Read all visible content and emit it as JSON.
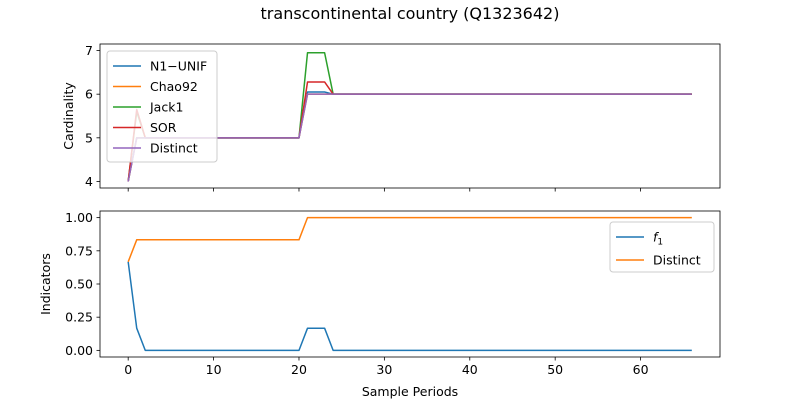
{
  "figure": {
    "title": "transcontinental country (Q1323642)"
  },
  "chart_data": [
    {
      "type": "line",
      "ylabel": "Cardinality",
      "xlabel": "",
      "xlim": [
        -3.3,
        69.3
      ],
      "ylim": [
        3.85,
        7.15
      ],
      "xticks": [
        0,
        10,
        20,
        30,
        40,
        50,
        60
      ],
      "yticks": [
        4,
        5,
        6,
        7
      ],
      "show_xticklabels": false,
      "grid": false,
      "legend_position": "upper-left",
      "series": [
        {
          "name": "N1−UNIF",
          "color": "#1f77b4",
          "points": [
            [
              0,
              4
            ],
            [
              1,
              5
            ],
            [
              2,
              5
            ],
            [
              20,
              5
            ],
            [
              21,
              6.05
            ],
            [
              23,
              6.05
            ],
            [
              24,
              6
            ],
            [
              66,
              6
            ]
          ]
        },
        {
          "name": "Chao92",
          "color": "#ff7f0e",
          "points": [
            [
              0,
              4
            ],
            [
              1,
              5
            ],
            [
              2,
              5
            ],
            [
              20,
              5
            ],
            [
              21,
              6
            ],
            [
              66,
              6
            ]
          ]
        },
        {
          "name": "Jack1",
          "color": "#2ca02c",
          "points": [
            [
              0,
              4
            ],
            [
              1,
              5.6
            ],
            [
              2,
              5
            ],
            [
              20,
              5
            ],
            [
              21,
              6.95
            ],
            [
              23,
              6.95
            ],
            [
              24,
              6
            ],
            [
              66,
              6
            ]
          ]
        },
        {
          "name": "SOR",
          "color": "#d62728",
          "points": [
            [
              0,
              4
            ],
            [
              1,
              5.65
            ],
            [
              2,
              5
            ],
            [
              20,
              5
            ],
            [
              21,
              6.28
            ],
            [
              23,
              6.28
            ],
            [
              24,
              6
            ],
            [
              66,
              6
            ]
          ]
        },
        {
          "name": "Distinct",
          "color": "#9467bd",
          "points": [
            [
              0,
              4
            ],
            [
              1,
              5
            ],
            [
              2,
              5
            ],
            [
              20,
              5
            ],
            [
              21,
              6
            ],
            [
              66,
              6
            ]
          ]
        }
      ]
    },
    {
      "type": "line",
      "ylabel": "Indicators",
      "xlabel": "Sample Periods",
      "xlim": [
        -3.3,
        69.3
      ],
      "ylim": [
        -0.05,
        1.05
      ],
      "xticks": [
        0,
        10,
        20,
        30,
        40,
        50,
        60
      ],
      "yticks": [
        0.0,
        0.25,
        0.5,
        0.75,
        1.0
      ],
      "ytick_labels": [
        "0.00",
        "0.25",
        "0.50",
        "0.75",
        "1.00"
      ],
      "show_xticklabels": true,
      "grid": false,
      "legend_position": "upper-right",
      "series": [
        {
          "name": "f1",
          "color": "#1f77b4",
          "points": [
            [
              0,
              0.667
            ],
            [
              1,
              0.167
            ],
            [
              2,
              0
            ],
            [
              20,
              0
            ],
            [
              21,
              0.167
            ],
            [
              23,
              0.167
            ],
            [
              24,
              0
            ],
            [
              66,
              0
            ]
          ]
        },
        {
          "name": "Distinct",
          "color": "#ff7f0e",
          "points": [
            [
              0,
              0.667
            ],
            [
              1,
              0.833
            ],
            [
              20,
              0.833
            ],
            [
              21,
              1.0
            ],
            [
              66,
              1.0
            ]
          ]
        }
      ]
    }
  ]
}
